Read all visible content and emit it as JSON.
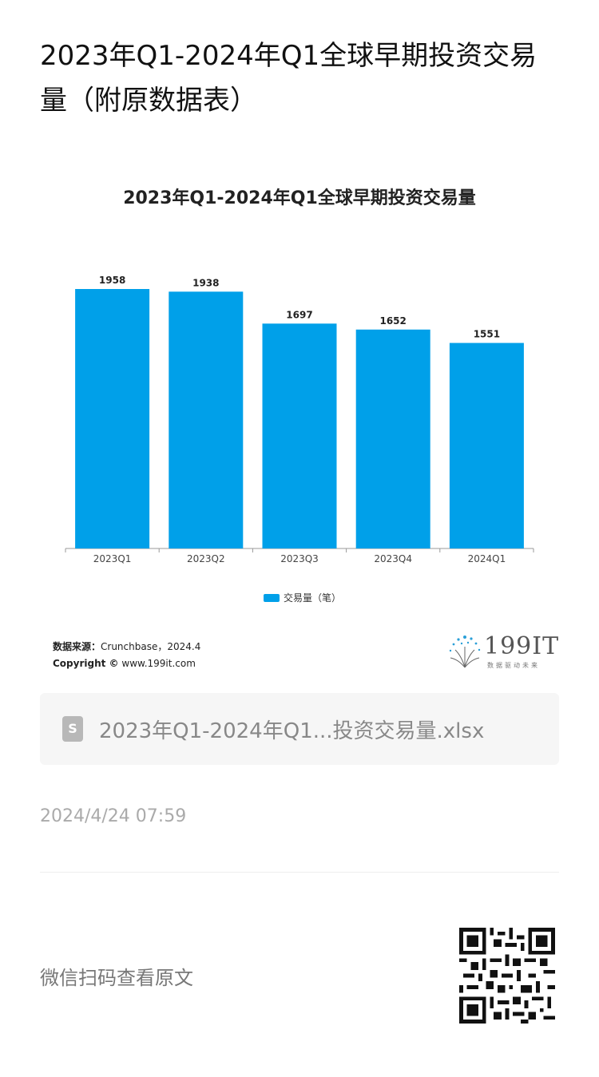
{
  "page": {
    "title": "2023年Q1-2024年Q1全球早期投资交易量（附原数据表）"
  },
  "chart_data": {
    "type": "bar",
    "title": "2023年Q1-2024年Q1全球早期投资交易量",
    "categories": [
      "2023Q1",
      "2023Q2",
      "2023Q3",
      "2023Q4",
      "2024Q1"
    ],
    "series": [
      {
        "name": "交易量（笔）",
        "values": [
          1958,
          1938,
          1697,
          1652,
          1551
        ]
      }
    ],
    "ylim": [
      0,
      1958
    ],
    "grid": false,
    "legend": "bottom",
    "color": "#00a0e9"
  },
  "source": {
    "label": "数据来源：",
    "value": "Crunchbase，2024.4",
    "copyright_label": "Copyright ©",
    "copyright_value": "www.199it.com"
  },
  "logo": {
    "text": "199IT",
    "sub": "数据驱动未来"
  },
  "attachment": {
    "icon": "spreadsheet-file-icon",
    "icon_letter": "S",
    "name": "2023年Q1-2024年Q1...投资交易量.xlsx"
  },
  "timestamp": "2024/4/24 07:59",
  "footer": {
    "qr_hint": "微信扫码查看原文"
  }
}
